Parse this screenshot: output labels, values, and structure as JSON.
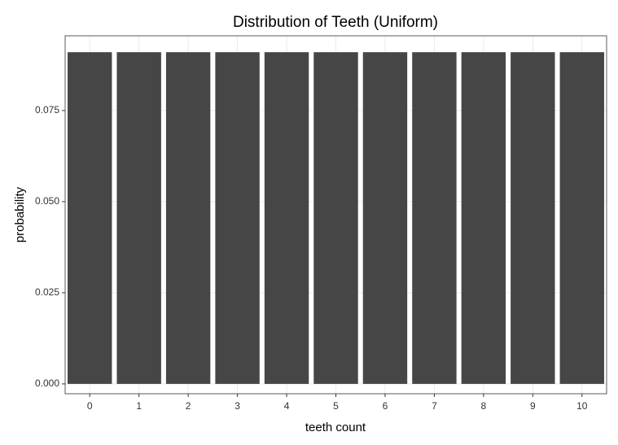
{
  "chart_data": {
    "type": "bar",
    "title": "Distribution of Teeth (Uniform)",
    "x_label": "teeth count",
    "y_label": "probability",
    "categories": [
      "0",
      "1",
      "2",
      "3",
      "4",
      "5",
      "6",
      "7",
      "8",
      "9",
      "10"
    ],
    "values": [
      0.091,
      0.091,
      0.091,
      0.091,
      0.091,
      0.091,
      0.091,
      0.091,
      0.091,
      0.091,
      0.091
    ],
    "color": "#464646",
    "ylim": [
      -0.0027,
      0.0955
    ],
    "yticks": [
      {
        "value": 0,
        "label": "0.000"
      },
      0.025,
      {
        "value": 0.05,
        "label": "0.050"
      },
      0.075
    ],
    "grid": true
  }
}
